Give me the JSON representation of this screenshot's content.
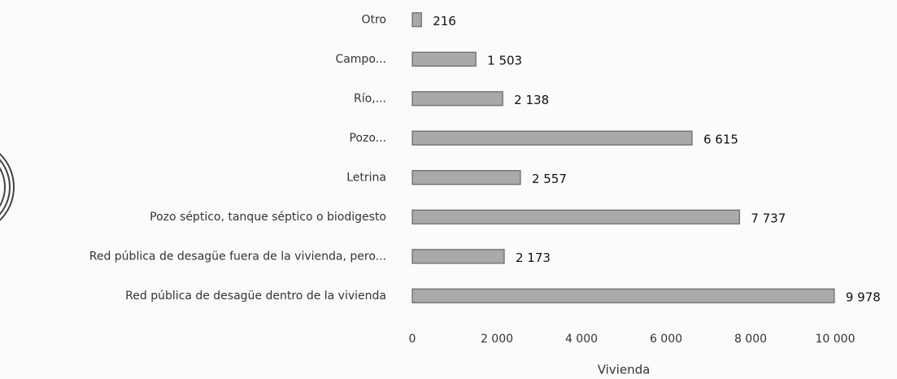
{
  "chart_data": {
    "type": "bar",
    "orientation": "horizontal",
    "x_label": "Vivienda",
    "categories": [
      "Otro",
      "Campo...",
      "Río,...",
      "Pozo...",
      "Letrina",
      "Pozo séptico, tanque séptico o biodigesto",
      "Red pública de desagüe fuera de la vivienda, pero...",
      "Red pública de desagüe dentro de la vivienda"
    ],
    "values": [
      216,
      1503,
      2138,
      6615,
      2557,
      7737,
      2173,
      9978
    ],
    "value_labels": [
      "216",
      "1 503",
      "2 138",
      "6 615",
      "2 557",
      "7 737",
      "2 173",
      "9 978"
    ],
    "color": "#a9a9a9",
    "xlim": [
      0,
      10000
    ],
    "xticks": [
      0,
      {
        "value": 2000,
        "label": "2 000"
      },
      {
        "value": 4000,
        "label": "4 000"
      },
      {
        "value": 6000,
        "label": "6 000"
      },
      {
        "value": 8000,
        "label": "8 000"
      },
      {
        "value": 10000,
        "label": "10 000"
      }
    ],
    "grid": false
  }
}
